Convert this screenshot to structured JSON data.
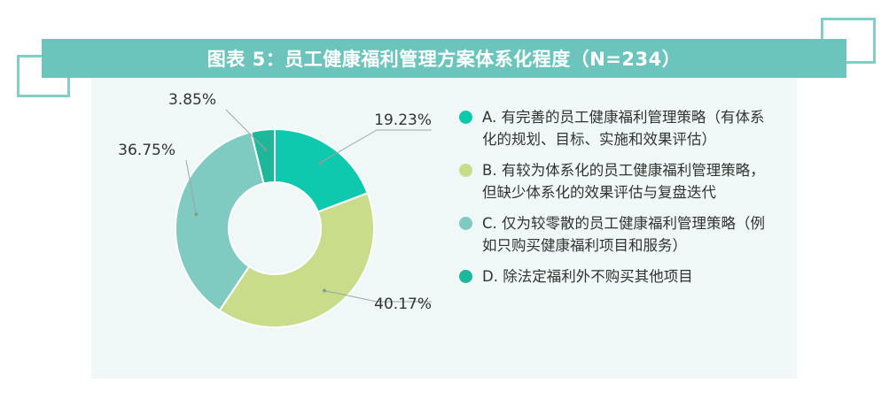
{
  "title": "图表 5：员工健康福利管理方案体系化程度（N=234）",
  "chart_data": {
    "type": "pie",
    "title": "图表 5：员工健康福利管理方案体系化程度（N=234）",
    "slices": [
      {
        "name": "A. 有完善的员工健康福利管理策略（有体系化的规划、目标、实施和效果评估）",
        "value": 19.23,
        "label": "19.23%",
        "color": "#0ec9ae"
      },
      {
        "name": "B. 有较为体系化的员工健康福利管理策略，但缺少体系化的效果评估与复盘迭代",
        "value": 40.17,
        "label": "40.17%",
        "color": "#c8dc8a"
      },
      {
        "name": "C. 仅为较零散的员工健康福利管理策略（例如只购买健康福利项目和服务）",
        "value": 36.75,
        "label": "36.75%",
        "color": "#7fcbc2"
      },
      {
        "name": "D. 除法定福利外不购买其他项目",
        "value": 3.85,
        "label": "3.85%",
        "color": "#1db89a"
      }
    ]
  }
}
